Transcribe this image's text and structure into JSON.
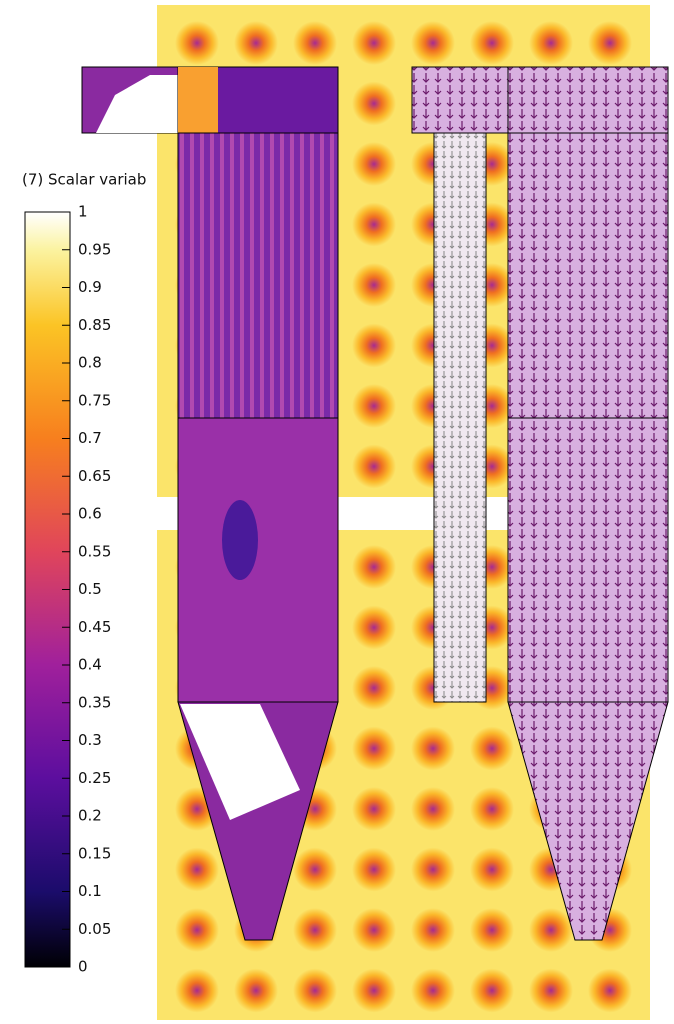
{
  "colorbar": {
    "title": "(7) Scalar variab",
    "ticks": [
      1,
      0.95,
      0.9,
      0.85,
      0.8,
      0.75,
      0.7,
      0.65,
      0.6,
      0.55,
      0.5,
      0.45,
      0.4,
      0.35,
      0.3,
      0.25,
      0.2,
      0.15,
      0.1,
      0.05,
      0
    ],
    "range": [
      0,
      1
    ]
  }
}
